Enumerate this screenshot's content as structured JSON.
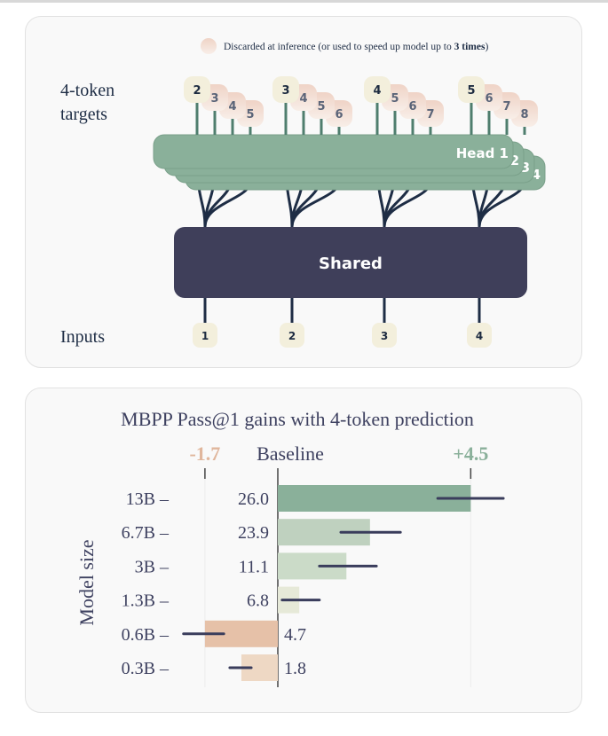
{
  "diagram": {
    "legend": {
      "text": "Discarded at inference (or used to speed up model up to ",
      "bold": "3 times",
      "close": ")"
    },
    "targets_label": [
      "4-token",
      "targets"
    ],
    "inputs_label": "Inputs",
    "shared_label": "Shared",
    "head_labels": [
      "Head 1",
      "2",
      "3",
      "4"
    ],
    "inputs": [
      "1",
      "2",
      "3",
      "4"
    ],
    "targets": [
      [
        "2",
        "3",
        "4",
        "5"
      ],
      [
        "3",
        "4",
        "5",
        "6"
      ],
      [
        "4",
        "5",
        "6",
        "7"
      ],
      [
        "5",
        "6",
        "7",
        "8"
      ]
    ],
    "colors": {
      "head": "#8ab09a",
      "shared": "#3f3f5a",
      "token": "#f3efdc",
      "discarded": "#f1d9cd",
      "line": "#1e2d45"
    }
  },
  "chart_data": {
    "type": "bar",
    "orientation": "horizontal",
    "title": "MBPP Pass@1  gains with 4-token prediction",
    "ylabel": "Model size",
    "categories": [
      "13B",
      "6.7B",
      "3B",
      "1.3B",
      "0.6B",
      "0.3B"
    ],
    "baseline_values": [
      "26.0",
      "23.9",
      "11.1",
      "6.8",
      "4.7",
      "1.8"
    ],
    "values": [
      4.5,
      2.15,
      1.6,
      0.5,
      -1.7,
      -0.85
    ],
    "error_ranges": [
      [
        3.73,
        5.26
      ],
      [
        1.47,
        2.86
      ],
      [
        0.97,
        2.3
      ],
      [
        0.1,
        0.97
      ],
      [
        -2.2,
        -1.26
      ],
      [
        -1.12,
        -0.62
      ]
    ],
    "ticks": [
      {
        "value": -1.7,
        "label": "-1.7",
        "color": "#e0b69c"
      },
      {
        "value": 0,
        "label": "Baseline",
        "color": "#3e4160"
      },
      {
        "value": 4.5,
        "label": "+4.5",
        "color": "#8ab09a"
      }
    ],
    "xlim": [
      -1.7,
      4.5
    ],
    "bar_colors": [
      "#8ab09a",
      "#bfd1bf",
      "#cbdbc8",
      "#e6e9d8",
      "#e6c1a8",
      "#eed8c4"
    ],
    "error_color": "#3a3d5c"
  }
}
